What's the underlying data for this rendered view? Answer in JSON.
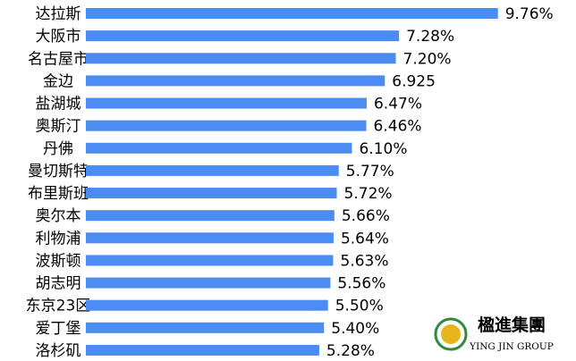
{
  "chart_data": {
    "type": "barh",
    "categories": [
      "达拉斯",
      "大阪市",
      "名古屋市",
      "金边",
      "盐湖城",
      "奥斯汀",
      "丹佛",
      "曼切斯特",
      "布里斯班",
      "奥尔本",
      "利物浦",
      "波斯顿",
      "胡志明",
      "东京23区",
      "爱丁堡",
      "洛杉矶"
    ],
    "values": [
      9.76,
      7.28,
      7.2,
      6.925,
      6.47,
      6.46,
      6.1,
      5.77,
      5.72,
      5.66,
      5.64,
      5.63,
      5.56,
      5.5,
      5.4,
      5.28
    ],
    "value_labels": [
      "9.76%",
      "7.28%",
      "7.20%",
      "6.925",
      "6.47%",
      "6.46%",
      "6.10%",
      "5.77%",
      "5.72%",
      "5.66%",
      "5.64%",
      "5.63%",
      "5.56%",
      "5.50%",
      "5.40%",
      "5.28%"
    ],
    "color": "#4a8cf2"
  },
  "logo": {
    "name": "楹進集團",
    "subtitle": "YING JIN GROUP"
  }
}
